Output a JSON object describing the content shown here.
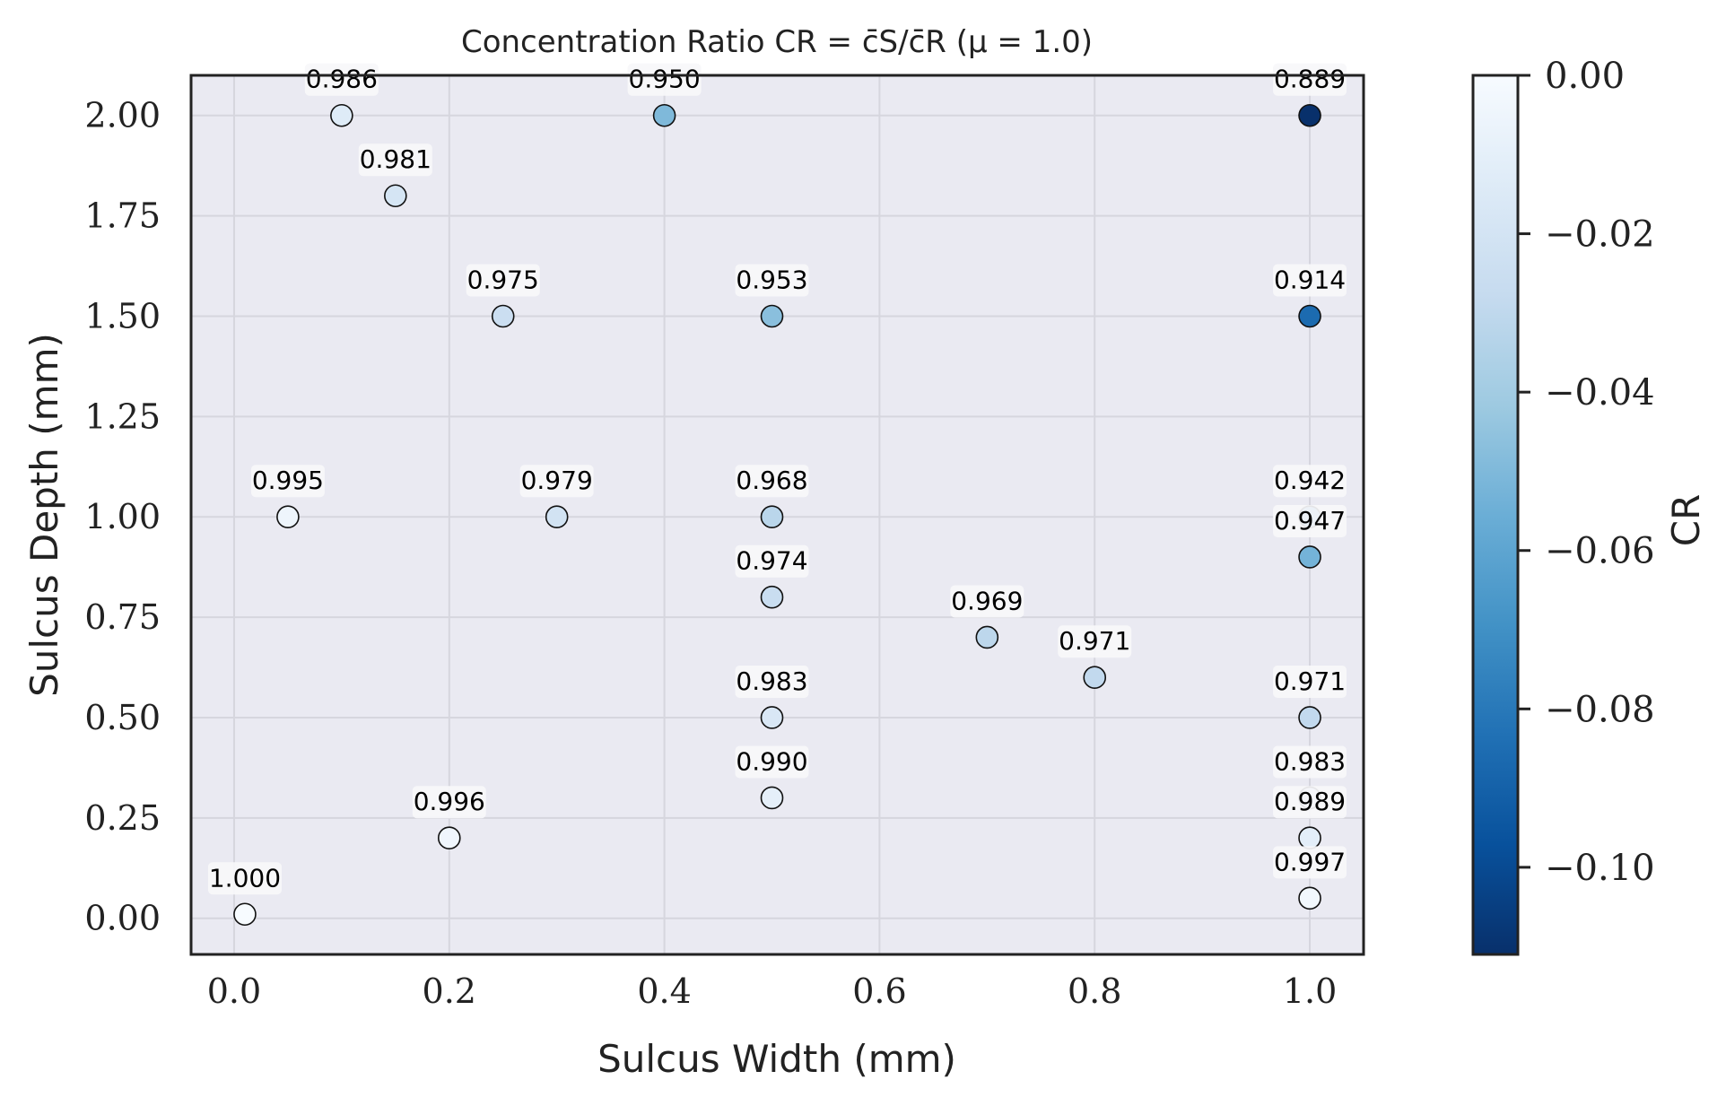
{
  "chart_data": {
    "type": "scatter",
    "title": "Concentration Ratio CR = c̄S/c̄R (μ = 1.0)",
    "xlabel": "Sulcus Width (mm)",
    "ylabel": "Sulcus Depth (mm)",
    "xlim": [
      -0.04,
      1.05
    ],
    "ylim": [
      -0.09,
      2.1
    ],
    "xticks": [
      0.0,
      0.2,
      0.4,
      0.6,
      0.8,
      1.0
    ],
    "xtick_labels": [
      "0.0",
      "0.2",
      "0.4",
      "0.6",
      "0.8",
      "1.0"
    ],
    "yticks": [
      0.0,
      0.25,
      0.5,
      0.75,
      1.0,
      1.25,
      1.5,
      1.75,
      2.0
    ],
    "ytick_labels": [
      "0.00",
      "0.25",
      "0.50",
      "0.75",
      "1.00",
      "1.25",
      "1.50",
      "1.75",
      "2.00"
    ],
    "grid": true,
    "colorbar": {
      "label": "CR",
      "colormap": "Blues",
      "range": [
        -0.111,
        0.0
      ],
      "ticks": [
        0.0,
        -0.02,
        -0.04,
        -0.06,
        -0.08,
        -0.1
      ],
      "tick_labels": [
        "0.00",
        "−0.02",
        "−0.04",
        "−0.06",
        "−0.08",
        "−0.10"
      ]
    },
    "points": [
      {
        "x": 0.01,
        "y": 0.01,
        "label": "1.000"
      },
      {
        "x": 0.05,
        "y": 1.0,
        "label": "0.995"
      },
      {
        "x": 0.1,
        "y": 2.0,
        "label": "0.986"
      },
      {
        "x": 0.15,
        "y": 1.8,
        "label": "0.981"
      },
      {
        "x": 0.2,
        "y": 0.2,
        "label": "0.996"
      },
      {
        "x": 0.25,
        "y": 1.5,
        "label": "0.975"
      },
      {
        "x": 0.3,
        "y": 1.0,
        "label": "0.979"
      },
      {
        "x": 0.4,
        "y": 2.0,
        "label": "0.950"
      },
      {
        "x": 0.5,
        "y": 1.5,
        "label": "0.953"
      },
      {
        "x": 0.5,
        "y": 1.0,
        "label": "0.968"
      },
      {
        "x": 0.5,
        "y": 0.8,
        "label": "0.974"
      },
      {
        "x": 0.5,
        "y": 0.5,
        "label": "0.983"
      },
      {
        "x": 0.5,
        "y": 0.3,
        "label": "0.990"
      },
      {
        "x": 0.7,
        "y": 0.7,
        "label": "0.969"
      },
      {
        "x": 0.8,
        "y": 0.6,
        "label": "0.971"
      },
      {
        "x": 1.0,
        "y": 2.0,
        "label": "0.889"
      },
      {
        "x": 1.0,
        "y": 1.5,
        "label": "0.914"
      },
      {
        "x": 1.0,
        "y": 1.0,
        "label": "0.942"
      },
      {
        "x": 1.0,
        "y": 0.9,
        "label": "0.947"
      },
      {
        "x": 1.0,
        "y": 0.5,
        "label": "0.971"
      },
      {
        "x": 1.0,
        "y": 0.3,
        "label": "0.983"
      },
      {
        "x": 1.0,
        "y": 0.2,
        "label": "0.989"
      },
      {
        "x": 1.0,
        "y": 0.05,
        "label": "0.997"
      }
    ]
  },
  "colors": {
    "axes_bg": "#eaeaf2",
    "grid": "#d6d6de",
    "spine": "#222222",
    "label_box": "#f7f7fa"
  }
}
